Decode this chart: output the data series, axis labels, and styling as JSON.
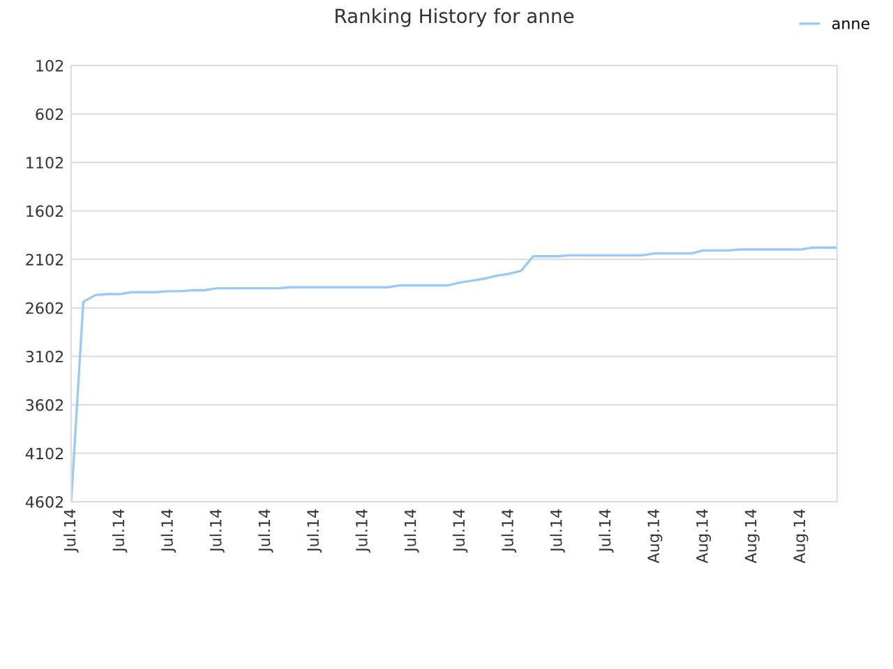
{
  "chart_data": {
    "type": "line",
    "title": "Ranking History for anne",
    "categories": [
      "Jul.14",
      null,
      null,
      null,
      "Jul.14",
      null,
      null,
      null,
      "Jul.14",
      null,
      null,
      null,
      "Jul.14",
      null,
      null,
      null,
      "Jul.14",
      null,
      null,
      null,
      "Jul.14",
      null,
      null,
      null,
      "Jul.14",
      null,
      null,
      null,
      "Jul.14",
      null,
      null,
      null,
      "Jul.14",
      null,
      null,
      null,
      "Jul.14",
      null,
      null,
      null,
      "Jul.14",
      null,
      null,
      null,
      "Jul.14",
      null,
      null,
      null,
      "Aug.14",
      null,
      null,
      null,
      "Aug.14",
      null,
      null,
      null,
      "Aug.14",
      null,
      null,
      null,
      "Aug.14",
      null,
      null,
      null
    ],
    "series": [
      {
        "name": "anne",
        "color": "#99c9f5",
        "values": [
          4602,
          2540,
          2470,
          2460,
          2460,
          2440,
          2440,
          2440,
          2430,
          2430,
          2420,
          2420,
          2400,
          2400,
          2400,
          2400,
          2400,
          2400,
          2390,
          2390,
          2390,
          2390,
          2390,
          2390,
          2390,
          2390,
          2390,
          2370,
          2370,
          2370,
          2370,
          2370,
          2340,
          2320,
          2300,
          2270,
          2250,
          2220,
          2070,
          2070,
          2070,
          2060,
          2060,
          2060,
          2060,
          2060,
          2060,
          2060,
          2040,
          2040,
          2040,
          2040,
          2010,
          2010,
          2010,
          2000,
          2000,
          2000,
          2000,
          2000,
          2000,
          1980,
          1980,
          1980
        ]
      }
    ],
    "ylim": [
      4602,
      102
    ],
    "yticks": [
      102,
      602,
      1102,
      1602,
      2102,
      2602,
      3102,
      3602,
      4102,
      4602
    ],
    "grid": "y",
    "legend": "top right",
    "marker": "none",
    "line_style": "solid"
  }
}
